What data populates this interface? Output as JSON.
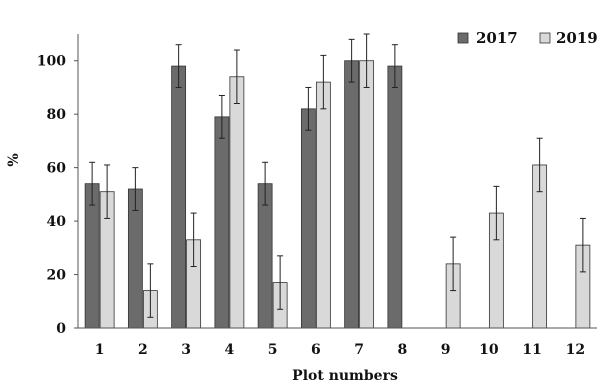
{
  "chart_data": {
    "type": "bar",
    "xlabel": "Plot numbers",
    "ylabel": "%",
    "ylim": [
      0,
      110
    ],
    "yticks": [
      0,
      20,
      40,
      60,
      80,
      100
    ],
    "categories": [
      "1",
      "2",
      "3",
      "4",
      "5",
      "6",
      "7",
      "8",
      "9",
      "10",
      "11",
      "12"
    ],
    "series": [
      {
        "name": "2017",
        "color": "#6b6b6b",
        "values": [
          54,
          52,
          98,
          79,
          54,
          82,
          100,
          98,
          null,
          null,
          null,
          null
        ],
        "errors": [
          8,
          8,
          8,
          8,
          8,
          8,
          8,
          8,
          null,
          null,
          null,
          null
        ]
      },
      {
        "name": "2019",
        "color": "#d9d9d9",
        "values": [
          51,
          14,
          33,
          94,
          17,
          92,
          100,
          null,
          24,
          43,
          61,
          31
        ],
        "errors": [
          10,
          10,
          10,
          10,
          10,
          10,
          10,
          null,
          10,
          10,
          10,
          10
        ]
      }
    ],
    "legend_position": "top-right",
    "grid": false
  }
}
